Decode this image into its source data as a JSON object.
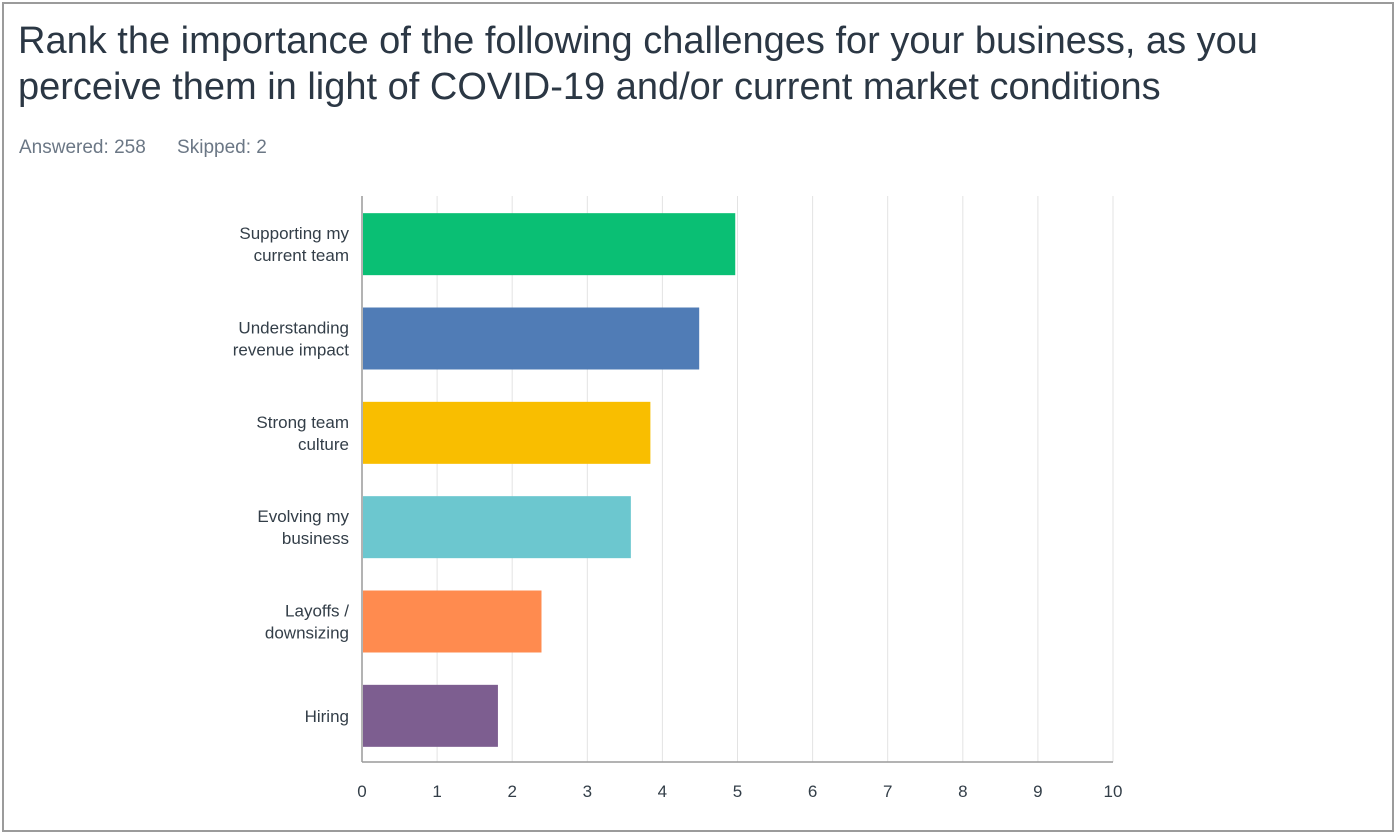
{
  "question": {
    "title": "Rank the importance of the following challenges for your business, as you perceive them in light of COVID-19 and/or current market conditions",
    "answered_label": "Answered:",
    "answered_count": "258",
    "skipped_label": "Skipped:",
    "skipped_count": "2"
  },
  "chart_data": {
    "type": "bar",
    "orientation": "horizontal",
    "categories": [
      "Supporting my current team",
      "Understanding revenue impact",
      "Strong team culture",
      "Evolving my business",
      "Layoffs / downsizing",
      "Hiring"
    ],
    "category_label_lines": [
      [
        "Supporting my",
        "current team"
      ],
      [
        "Understanding",
        "revenue impact"
      ],
      [
        "Strong team",
        "culture"
      ],
      [
        "Evolving my",
        "business"
      ],
      [
        "Layoffs /",
        "downsizing"
      ],
      [
        "Hiring"
      ]
    ],
    "values": [
      4.97,
      4.49,
      3.84,
      3.58,
      2.39,
      1.81
    ],
    "colors": [
      "#0abf74",
      "#507cb6",
      "#f9be00",
      "#6cc7cf",
      "#ff8b4f",
      "#7d5e90"
    ],
    "xlim": [
      0,
      10
    ],
    "xticks": [
      "0",
      "1",
      "2",
      "3",
      "4",
      "5",
      "6",
      "7",
      "8",
      "9",
      "10"
    ],
    "grid": true,
    "legend": "none",
    "title": "",
    "xlabel": "",
    "ylabel": ""
  }
}
